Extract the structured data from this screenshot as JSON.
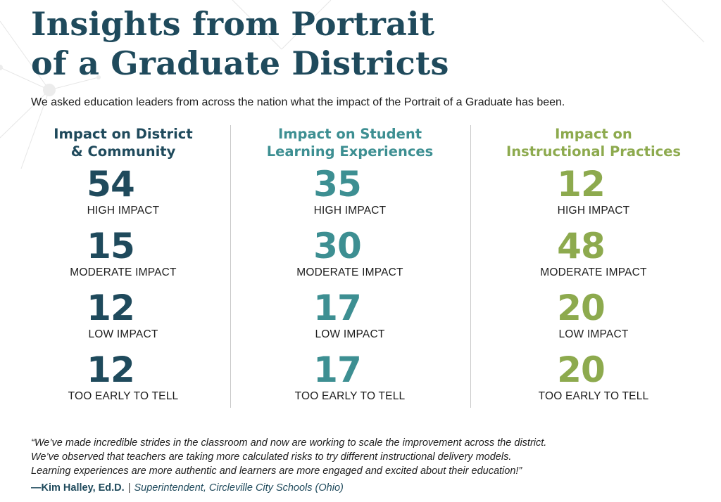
{
  "colors": {
    "navy": "#1f4a5c",
    "teal": "#3d8f92",
    "green": "#8daa4e"
  },
  "header": {
    "title_line1": "Insights from Portrait",
    "title_line2": "of a Graduate Districts",
    "subtitle": "We asked education leaders from across the nation what the impact of the Portrait of a Graduate has been."
  },
  "columns": [
    {
      "heading_line1": "Impact on District",
      "heading_line2": "& Community",
      "color": "#1f4a5c",
      "stats": [
        {
          "value": "54",
          "unit": "%",
          "label": "HIGH IMPACT"
        },
        {
          "value": "15",
          "unit": "%",
          "label": "MODERATE IMPACT"
        },
        {
          "value": "12",
          "unit": "%",
          "label": "LOW IMPACT"
        },
        {
          "value": "12",
          "unit": "%",
          "label": "TOO EARLY TO TELL"
        }
      ]
    },
    {
      "heading_line1": "Impact on Student",
      "heading_line2": "Learning Experiences",
      "color": "#3d8f92",
      "stats": [
        {
          "value": "35",
          "unit": "%",
          "label": "HIGH IMPACT"
        },
        {
          "value": "30",
          "unit": "%",
          "label": "MODERATE IMPACT"
        },
        {
          "value": "17",
          "unit": "%",
          "label": "LOW IMPACT"
        },
        {
          "value": "17",
          "unit": "%",
          "label": "TOO EARLY TO TELL"
        }
      ]
    },
    {
      "heading_line1": "Impact on",
      "heading_line2": "Instructional Practices",
      "color": "#8daa4e",
      "stats": [
        {
          "value": "12",
          "unit": "%",
          "label": "HIGH IMPACT"
        },
        {
          "value": "48",
          "unit": "%",
          "label": "MODERATE IMPACT"
        },
        {
          "value": "20",
          "unit": "%",
          "label": "LOW IMPACT"
        },
        {
          "value": "20",
          "unit": "%",
          "label": "TOO EARLY TO TELL"
        }
      ]
    }
  ],
  "quote": {
    "line1": "“We’ve made incredible strides in the classroom and now are working to scale the improvement across the district.",
    "line2": "We’ve observed that teachers are taking more calculated risks to try different instructional delivery models.",
    "line3": "Learning experiences are more authentic and learners are more engaged and excited about their education!”",
    "author": "—Kim Halley, Ed.D.",
    "separator": "|",
    "role": "Superintendent, Circleville City Schools (Ohio)"
  }
}
